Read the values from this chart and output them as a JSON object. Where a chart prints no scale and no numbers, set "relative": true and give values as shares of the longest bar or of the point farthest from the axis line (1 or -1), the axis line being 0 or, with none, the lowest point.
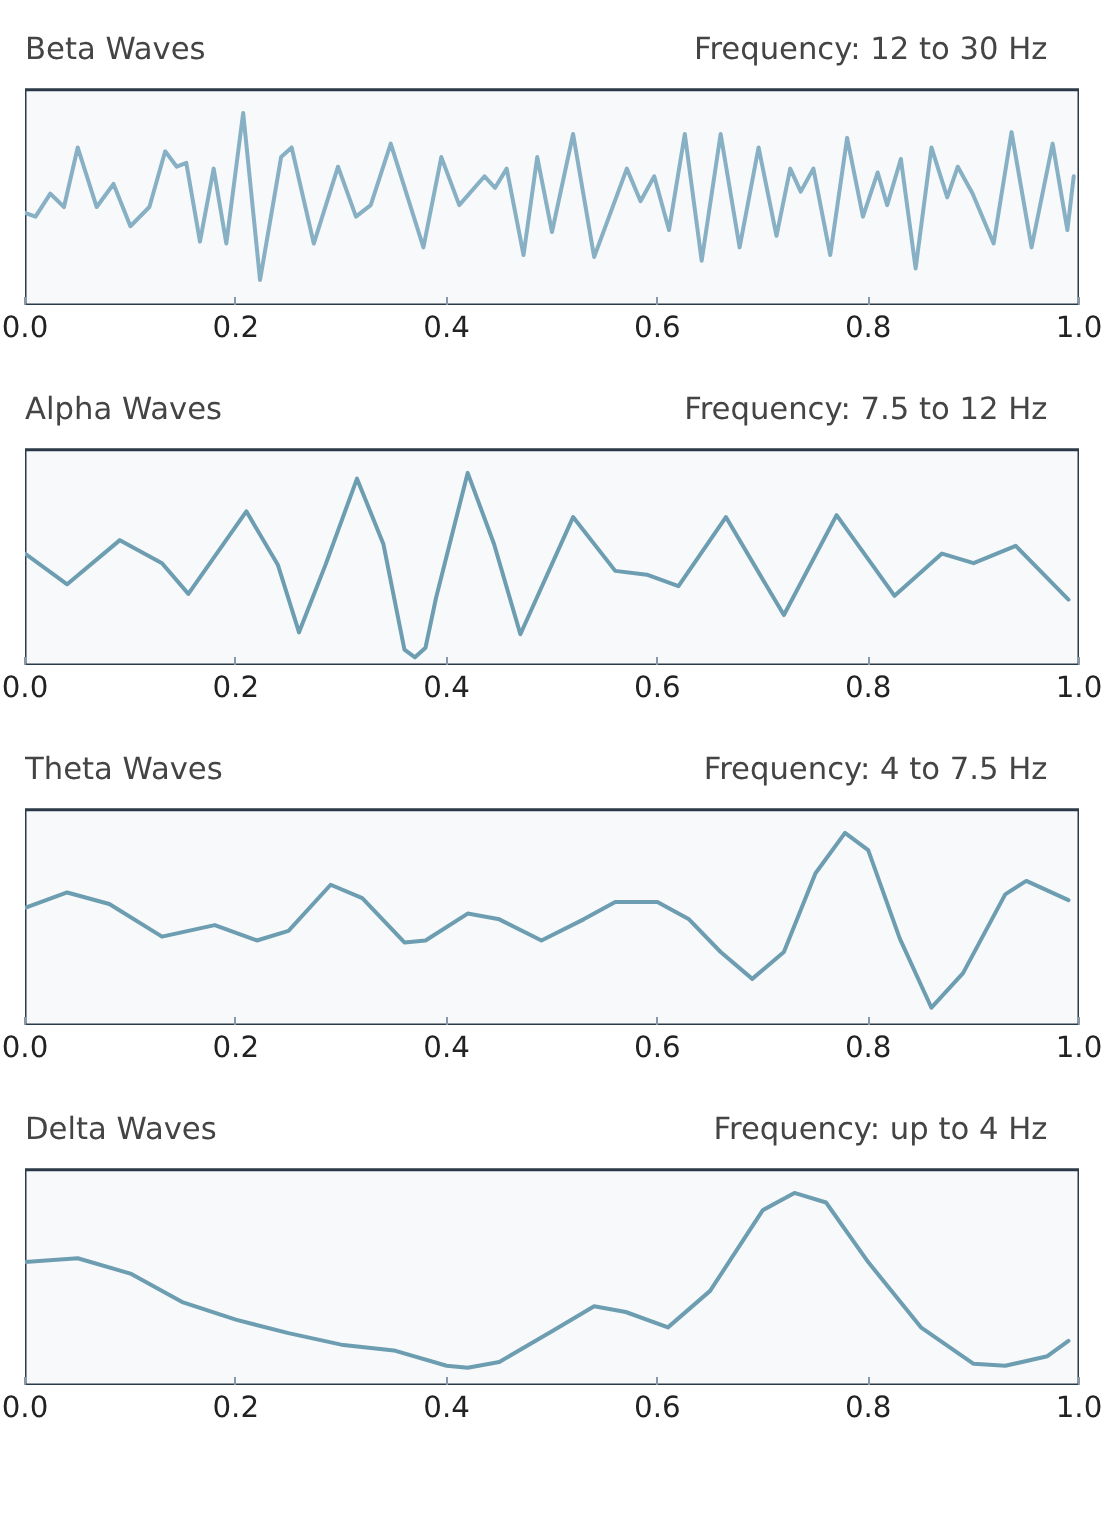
{
  "chart_data": [
    {
      "type": "line",
      "title": "Beta Waves",
      "subtitle": "Frequency: 12 to 30 Hz",
      "relative": true,
      "grid": false,
      "tick_labels": "x",
      "xlim": [
        0,
        1
      ],
      "xticks": [
        {
          "value": 0,
          "label": "0.0"
        },
        {
          "value": 0.2,
          "label": "0.2"
        },
        {
          "value": 0.4,
          "label": "0.4"
        },
        {
          "value": 0.6,
          "label": "0.6"
        },
        {
          "value": 0.8,
          "label": "0.8"
        },
        {
          "value": 1,
          "label": "1.0"
        }
      ],
      "x": [
        0.0,
        0.01,
        0.024,
        0.037,
        0.05,
        0.068,
        0.084,
        0.1,
        0.118,
        0.133,
        0.144,
        0.153,
        0.166,
        0.179,
        0.191,
        0.207,
        0.223,
        0.243,
        0.253,
        0.274,
        0.297,
        0.314,
        0.328,
        0.347,
        0.378,
        0.395,
        0.412,
        0.436,
        0.446,
        0.457,
        0.473,
        0.486,
        0.5,
        0.52,
        0.54,
        0.571,
        0.584,
        0.597,
        0.611,
        0.626,
        0.642,
        0.66,
        0.678,
        0.696,
        0.713,
        0.726,
        0.736,
        0.748,
        0.764,
        0.78,
        0.795,
        0.809,
        0.818,
        0.831,
        0.845,
        0.86,
        0.875,
        0.885,
        0.899,
        0.919,
        0.936,
        0.955,
        0.975,
        0.989,
        0.995
      ],
      "series": [
        {
          "color": "#88b0c4",
          "values": [
            0.48,
            0.46,
            0.58,
            0.51,
            0.82,
            0.51,
            0.63,
            0.41,
            0.51,
            0.8,
            0.72,
            0.74,
            0.33,
            0.71,
            0.32,
            1.0,
            0.13,
            0.77,
            0.82,
            0.32,
            0.72,
            0.46,
            0.52,
            0.84,
            0.3,
            0.77,
            0.52,
            0.67,
            0.61,
            0.71,
            0.26,
            0.77,
            0.38,
            0.89,
            0.25,
            0.71,
            0.54,
            0.67,
            0.39,
            0.89,
            0.23,
            0.89,
            0.3,
            0.82,
            0.36,
            0.71,
            0.59,
            0.71,
            0.26,
            0.87,
            0.46,
            0.69,
            0.52,
            0.76,
            0.19,
            0.82,
            0.56,
            0.72,
            0.58,
            0.32,
            0.9,
            0.3,
            0.84,
            0.39,
            0.67
          ]
        }
      ]
    },
    {
      "type": "line",
      "title": "Alpha Waves",
      "subtitle": "Frequency: 7.5 to 12 Hz",
      "relative": true,
      "grid": false,
      "tick_labels": "x",
      "xlim": [
        0,
        1
      ],
      "xticks": [
        {
          "value": 0,
          "label": "0.0"
        },
        {
          "value": 0.2,
          "label": "0.2"
        },
        {
          "value": 0.4,
          "label": "0.4"
        },
        {
          "value": 0.6,
          "label": "0.6"
        },
        {
          "value": 0.8,
          "label": "0.8"
        },
        {
          "value": 1,
          "label": "1.0"
        }
      ],
      "x": [
        0.0,
        0.04,
        0.09,
        0.13,
        0.155,
        0.21,
        0.24,
        0.26,
        0.285,
        0.315,
        0.34,
        0.36,
        0.37,
        0.38,
        0.39,
        0.42,
        0.445,
        0.47,
        0.52,
        0.56,
        0.59,
        0.62,
        0.665,
        0.72,
        0.77,
        0.825,
        0.87,
        0.9,
        0.94,
        0.99
      ],
      "series": [
        {
          "color": "#6d9db0",
          "values": [
            0.58,
            0.42,
            0.65,
            0.53,
            0.37,
            0.8,
            0.52,
            0.17,
            0.52,
            0.97,
            0.63,
            0.08,
            0.04,
            0.09,
            0.35,
            1.0,
            0.63,
            0.16,
            0.77,
            0.49,
            0.47,
            0.41,
            0.77,
            0.26,
            0.78,
            0.36,
            0.58,
            0.53,
            0.62,
            0.34
          ]
        }
      ]
    },
    {
      "type": "line",
      "title": "Theta Waves",
      "subtitle": "Frequency: 4 to 7.5 Hz",
      "relative": true,
      "grid": false,
      "tick_labels": "x",
      "xlim": [
        0,
        1
      ],
      "xticks": [
        {
          "value": 0,
          "label": "0.0"
        },
        {
          "value": 0.2,
          "label": "0.2"
        },
        {
          "value": 0.4,
          "label": "0.4"
        },
        {
          "value": 0.6,
          "label": "0.6"
        },
        {
          "value": 0.8,
          "label": "0.8"
        },
        {
          "value": 1,
          "label": "1.0"
        }
      ],
      "x": [
        0.0,
        0.04,
        0.08,
        0.13,
        0.18,
        0.22,
        0.25,
        0.29,
        0.32,
        0.36,
        0.38,
        0.42,
        0.45,
        0.49,
        0.53,
        0.56,
        0.6,
        0.63,
        0.66,
        0.69,
        0.72,
        0.75,
        0.778,
        0.8,
        0.83,
        0.86,
        0.89,
        0.93,
        0.95,
        0.99
      ],
      "series": [
        {
          "color": "#6d9db0",
          "values": [
            0.61,
            0.69,
            0.63,
            0.46,
            0.52,
            0.44,
            0.49,
            0.73,
            0.66,
            0.43,
            0.44,
            0.58,
            0.55,
            0.44,
            0.55,
            0.64,
            0.64,
            0.55,
            0.38,
            0.24,
            0.38,
            0.79,
            1.0,
            0.91,
            0.45,
            0.09,
            0.27,
            0.68,
            0.75,
            0.65
          ]
        }
      ]
    },
    {
      "type": "line",
      "title": "Delta Waves",
      "subtitle": "Frequency: up to 4 Hz",
      "relative": true,
      "grid": false,
      "tick_labels": "x",
      "xlim": [
        0,
        1
      ],
      "xticks": [
        {
          "value": 0,
          "label": "0.0"
        },
        {
          "value": 0.2,
          "label": "0.2"
        },
        {
          "value": 0.4,
          "label": "0.4"
        },
        {
          "value": 0.6,
          "label": "0.6"
        },
        {
          "value": 0.8,
          "label": "0.8"
        },
        {
          "value": 1,
          "label": "1.0"
        }
      ],
      "x": [
        0.0,
        0.05,
        0.1,
        0.15,
        0.2,
        0.25,
        0.3,
        0.35,
        0.4,
        0.42,
        0.45,
        0.5,
        0.54,
        0.57,
        0.61,
        0.65,
        0.7,
        0.73,
        0.76,
        0.8,
        0.85,
        0.9,
        0.93,
        0.97,
        0.99
      ],
      "series": [
        {
          "color": "#6d9db0",
          "values": [
            0.64,
            0.66,
            0.58,
            0.43,
            0.34,
            0.27,
            0.21,
            0.18,
            0.1,
            0.09,
            0.12,
            0.28,
            0.41,
            0.38,
            0.3,
            0.49,
            0.91,
            1.0,
            0.95,
            0.64,
            0.3,
            0.11,
            0.1,
            0.15,
            0.23
          ]
        }
      ]
    }
  ]
}
